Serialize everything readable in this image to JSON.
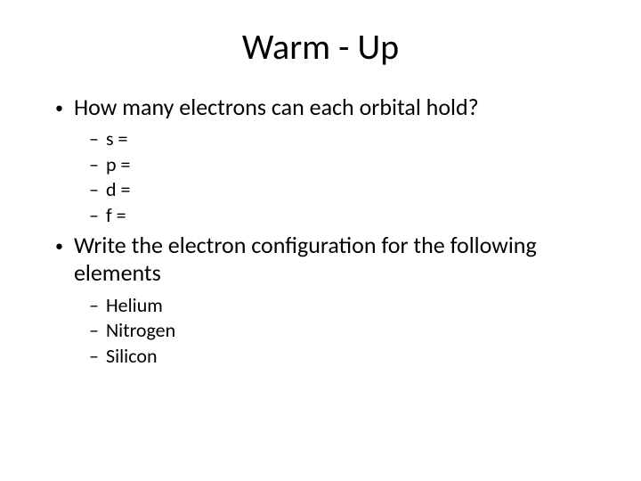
{
  "slide": {
    "title": "Warm - Up",
    "bullets": {
      "q1": "How many electrons can each orbital hold?",
      "q1_items": {
        "s": "s =",
        "p": "p =",
        "d": "d =",
        "f": "f ="
      },
      "q2": "Write the electron configuration for the following elements",
      "q2_items": {
        "helium": "Helium",
        "nitrogen": "Nitrogen",
        "silicon": "Silicon"
      }
    },
    "markers": {
      "l1": "•",
      "l2": "–"
    }
  },
  "style": {
    "background_color": "#ffffff",
    "text_color": "#000000",
    "title_fontsize": 40,
    "l1_fontsize": 26,
    "l2_fontsize": 22,
    "font_family": "Calibri"
  }
}
